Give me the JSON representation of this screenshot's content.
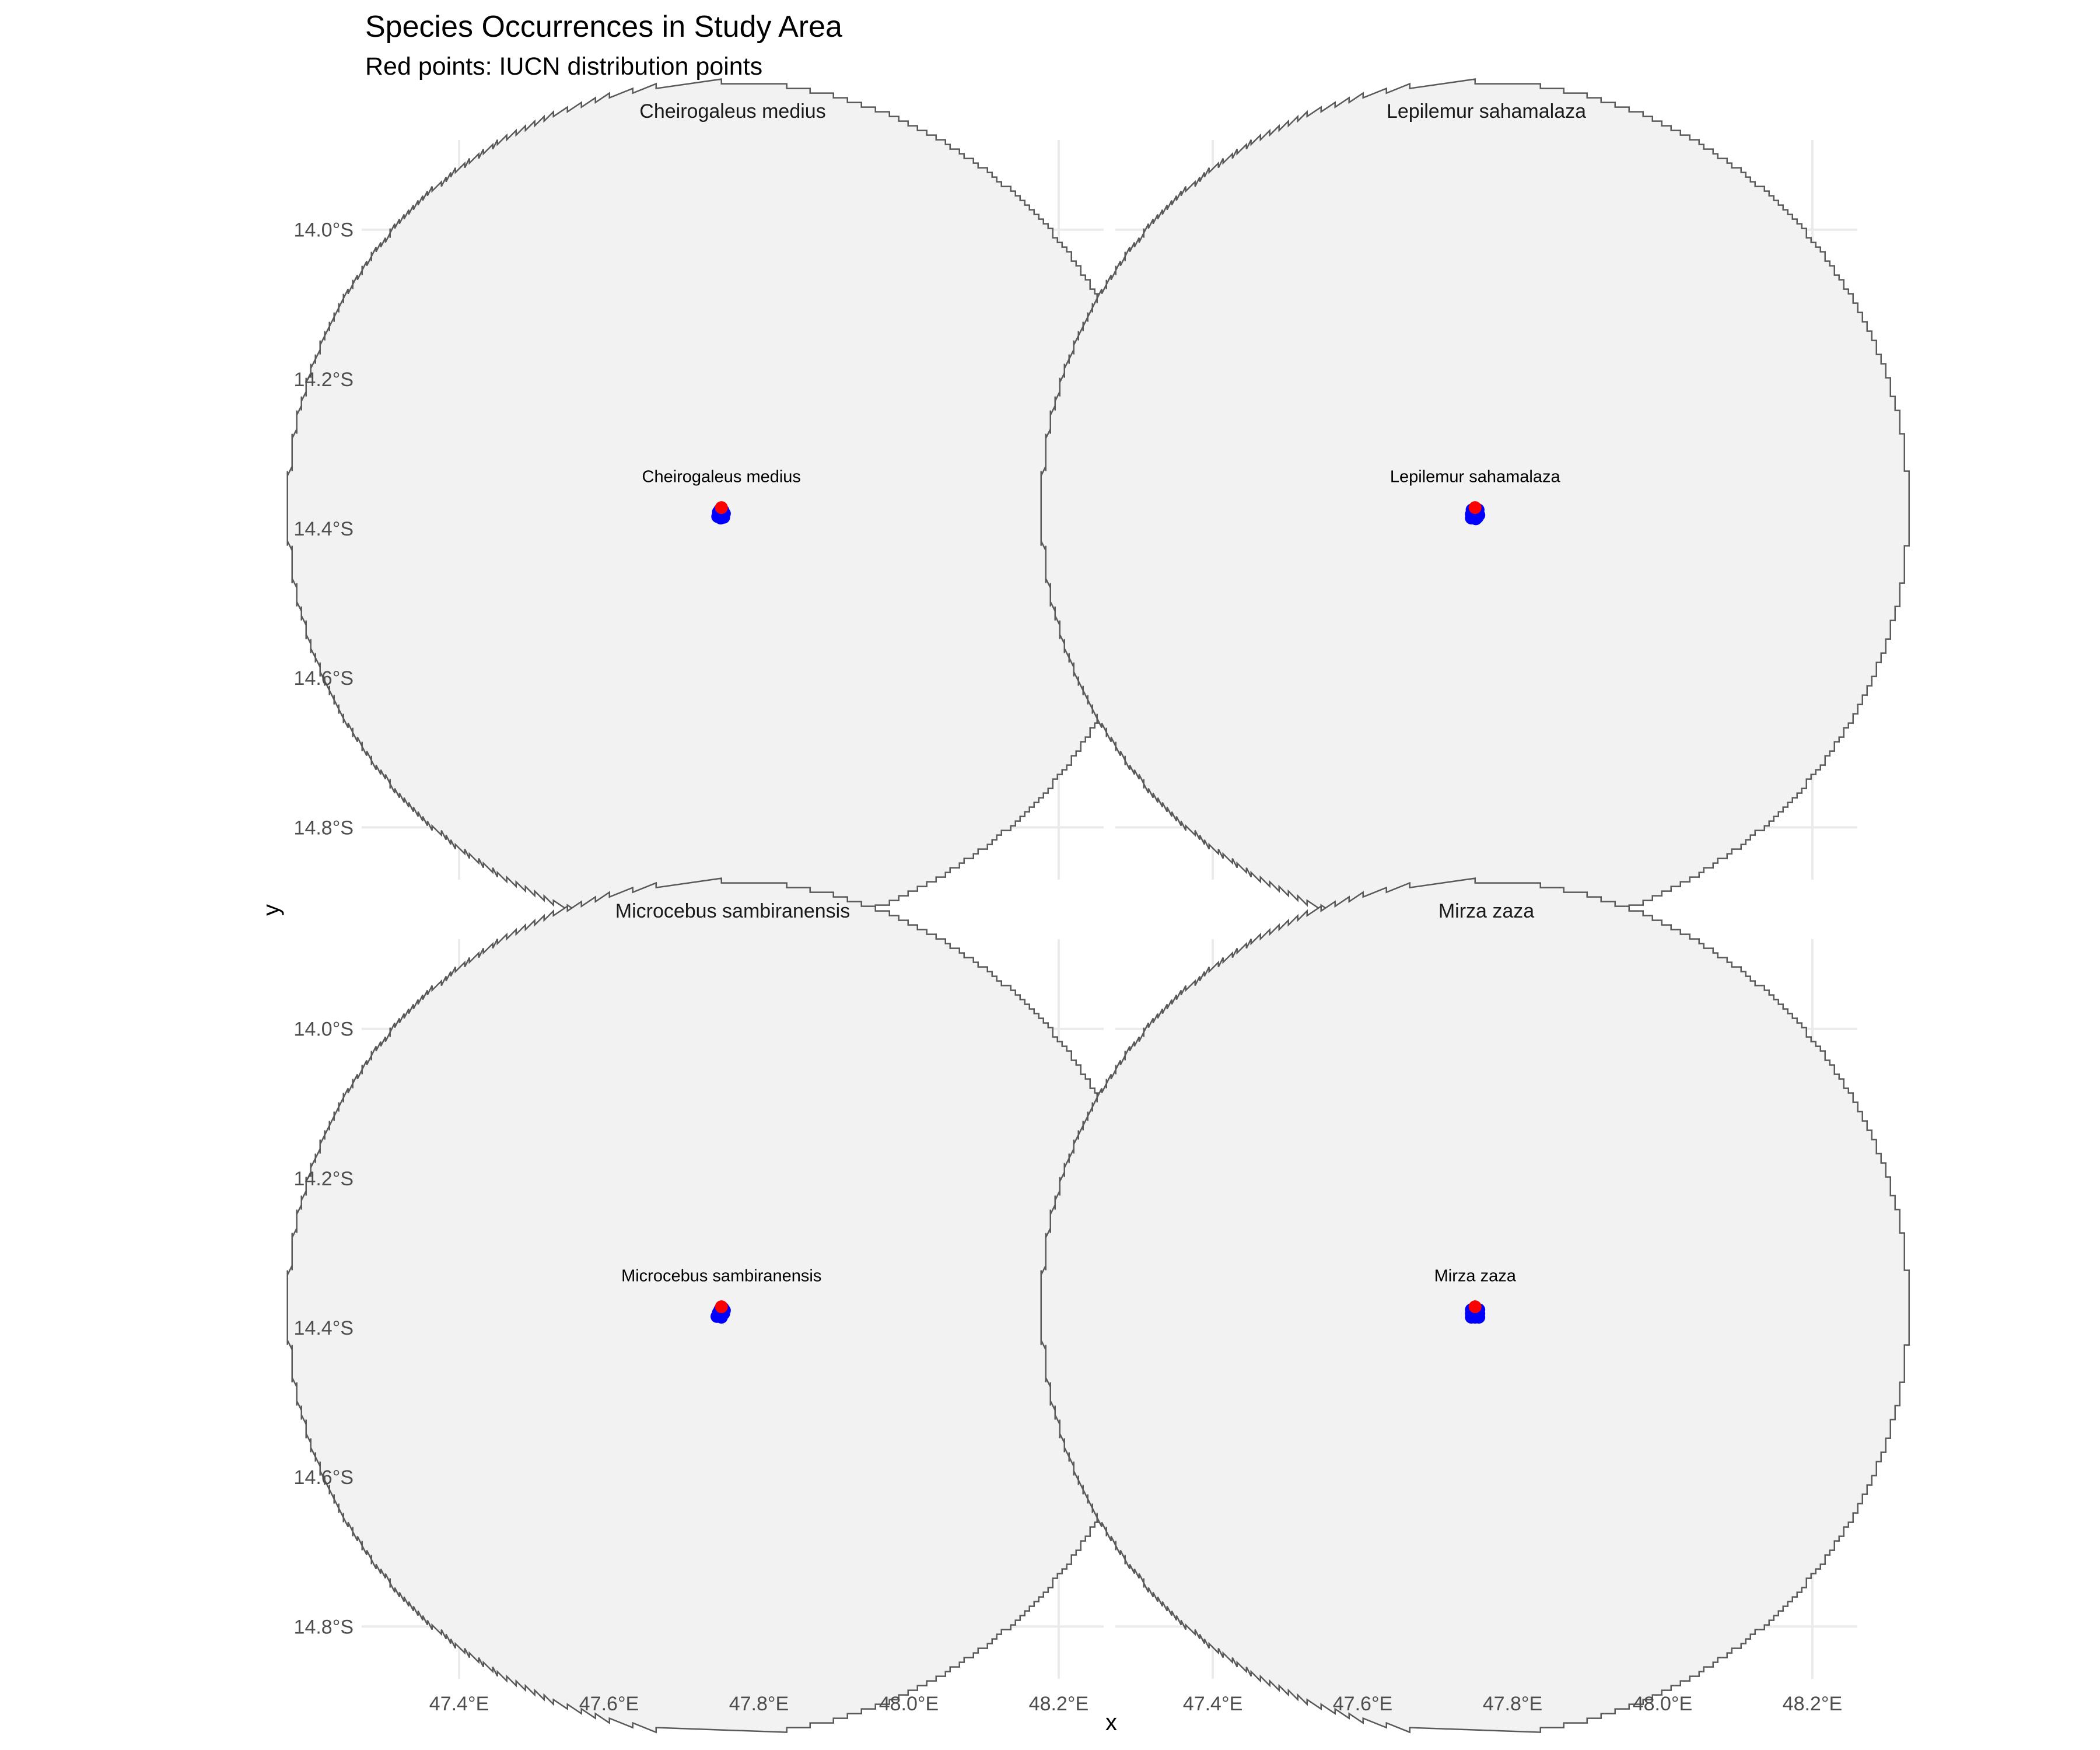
{
  "chart_data": [
    {
      "type": "scatter",
      "facet": "Cheirogaleus medius",
      "title": "Species Occurrences in Study Area",
      "subtitle": "Red points: IUCN distribution points",
      "xlabel": "x",
      "ylabel": "y",
      "x_ticks": [
        "47.4°E",
        "47.6°E",
        "47.8°E",
        "48.0°E",
        "48.2°E"
      ],
      "y_ticks": [
        "14.0°S",
        "14.2°S",
        "14.4°S",
        "14.6°S",
        "14.8°S"
      ],
      "xlim": [
        47.27,
        48.26
      ],
      "ylim": [
        -14.87,
        -13.88
      ],
      "study_area": {
        "shape": "circle",
        "center": [
          47.75,
          -14.37
        ],
        "radius_deg": 0.45,
        "fill": "#f2f2f2",
        "stroke": "#595959"
      },
      "label": {
        "text": "Cheirogaleus medius",
        "x": 47.75,
        "y": -14.33
      },
      "iucn_points": [
        {
          "x": 47.75,
          "y": -14.372
        }
      ],
      "occurrence_points": [
        {
          "x": 47.748,
          "y": -14.375
        },
        {
          "x": 47.752,
          "y": -14.376
        },
        {
          "x": 47.746,
          "y": -14.378
        },
        {
          "x": 47.75,
          "y": -14.379
        },
        {
          "x": 47.754,
          "y": -14.38
        },
        {
          "x": 47.747,
          "y": -14.382
        },
        {
          "x": 47.751,
          "y": -14.383
        },
        {
          "x": 47.745,
          "y": -14.384
        },
        {
          "x": 47.753,
          "y": -14.385
        },
        {
          "x": 47.749,
          "y": -14.386
        }
      ]
    },
    {
      "type": "scatter",
      "facet": "Lepilemur sahamalaza",
      "x_ticks": [
        "47.4°E",
        "47.6°E",
        "47.8°E",
        "48.0°E",
        "48.2°E"
      ],
      "y_ticks": [
        "14.0°S",
        "14.2°S",
        "14.4°S",
        "14.6°S",
        "14.8°S"
      ],
      "xlim": [
        47.27,
        48.26
      ],
      "ylim": [
        -14.87,
        -13.88
      ],
      "study_area": {
        "shape": "circle",
        "center": [
          47.75,
          -14.37
        ],
        "radius_deg": 0.45,
        "fill": "#f2f2f2",
        "stroke": "#595959"
      },
      "label": {
        "text": "Lepilemur sahamalaza",
        "x": 47.75,
        "y": -14.33
      },
      "iucn_points": [
        {
          "x": 47.75,
          "y": -14.372
        }
      ],
      "occurrence_points": [
        {
          "x": 47.746,
          "y": -14.375
        },
        {
          "x": 47.754,
          "y": -14.375
        },
        {
          "x": 47.748,
          "y": -14.378
        },
        {
          "x": 47.752,
          "y": -14.379
        },
        {
          "x": 47.745,
          "y": -14.381
        },
        {
          "x": 47.75,
          "y": -14.381
        },
        {
          "x": 47.755,
          "y": -14.382
        },
        {
          "x": 47.747,
          "y": -14.384
        },
        {
          "x": 47.753,
          "y": -14.385
        },
        {
          "x": 47.745,
          "y": -14.386
        },
        {
          "x": 47.751,
          "y": -14.387
        }
      ]
    },
    {
      "type": "scatter",
      "facet": "Microcebus sambiranensis",
      "x_ticks": [
        "47.4°E",
        "47.6°E",
        "47.8°E",
        "48.0°E",
        "48.2°E"
      ],
      "y_ticks": [
        "14.0°S",
        "14.2°S",
        "14.4°S",
        "14.6°S",
        "14.8°S"
      ],
      "xlim": [
        47.27,
        48.26
      ],
      "ylim": [
        -14.87,
        -13.88
      ],
      "study_area": {
        "shape": "circle",
        "center": [
          47.75,
          -14.37
        ],
        "radius_deg": 0.45,
        "fill": "#f2f2f2",
        "stroke": "#595959"
      },
      "label": {
        "text": "Microcebus sambiranensis",
        "x": 47.75,
        "y": -14.33
      },
      "iucn_points": [
        {
          "x": 47.75,
          "y": -14.372
        }
      ],
      "occurrence_points": [
        {
          "x": 47.752,
          "y": -14.374
        },
        {
          "x": 47.748,
          "y": -14.376
        },
        {
          "x": 47.754,
          "y": -14.377
        },
        {
          "x": 47.75,
          "y": -14.379
        },
        {
          "x": 47.746,
          "y": -14.38
        },
        {
          "x": 47.753,
          "y": -14.381
        },
        {
          "x": 47.748,
          "y": -14.383
        },
        {
          "x": 47.744,
          "y": -14.385
        },
        {
          "x": 47.75,
          "y": -14.386
        }
      ]
    },
    {
      "type": "scatter",
      "facet": "Mirza zaza",
      "x_ticks": [
        "47.4°E",
        "47.6°E",
        "47.8°E",
        "48.0°E",
        "48.2°E"
      ],
      "y_ticks": [
        "14.0°S",
        "14.2°S",
        "14.4°S",
        "14.6°S",
        "14.8°S"
      ],
      "xlim": [
        47.27,
        48.26
      ],
      "ylim": [
        -14.87,
        -13.88
      ],
      "study_area": {
        "shape": "circle",
        "center": [
          47.75,
          -14.37
        ],
        "radius_deg": 0.45,
        "fill": "#f2f2f2",
        "stroke": "#595959"
      },
      "label": {
        "text": "Mirza zaza",
        "x": 47.75,
        "y": -14.33
      },
      "iucn_points": [
        {
          "x": 47.75,
          "y": -14.372
        }
      ],
      "occurrence_points": [
        {
          "x": 47.745,
          "y": -14.376
        },
        {
          "x": 47.75,
          "y": -14.376
        },
        {
          "x": 47.755,
          "y": -14.376
        },
        {
          "x": 47.745,
          "y": -14.381
        },
        {
          "x": 47.75,
          "y": -14.381
        },
        {
          "x": 47.755,
          "y": -14.381
        },
        {
          "x": 47.745,
          "y": -14.386
        },
        {
          "x": 47.75,
          "y": -14.386
        },
        {
          "x": 47.755,
          "y": -14.386
        }
      ]
    }
  ],
  "colors": {
    "iucn_point": "#ff0000",
    "occurrence_point": "#0000ff",
    "study_area_fill": "#f2f2f2",
    "study_area_stroke": "#595959",
    "grid": "#ebebeb"
  }
}
